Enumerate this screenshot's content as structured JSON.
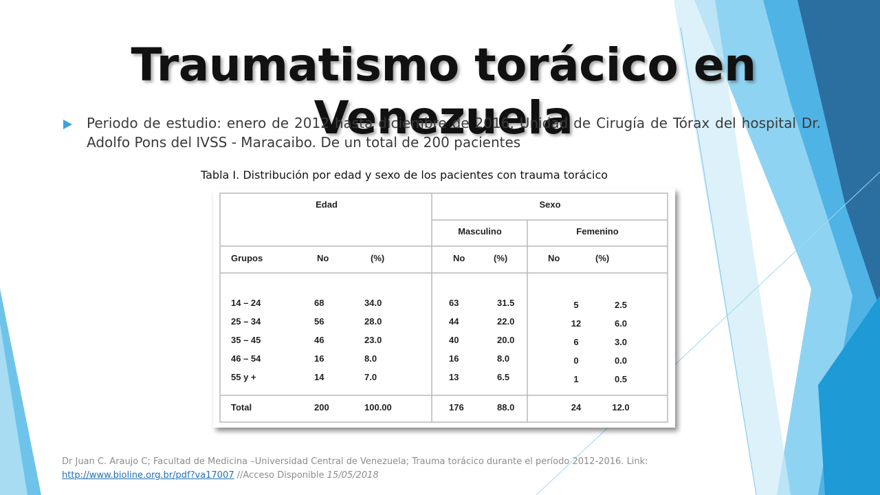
{
  "slide": {
    "title": "Traumatismo torácico en Venezuela",
    "bullet": "Periodo de estudio: enero de 2012 hasta diciembre de 2016, Unidad de Cirugía de Tórax del hospital Dr. Adolfo Pons del IVSS - Maracaibo. De un total de 200 pacientes",
    "table_caption": "Tabla I. Distribución por edad y sexo de los pacientes con trauma torácico"
  },
  "table": {
    "header_edad": "Edad",
    "header_sexo": "Sexo",
    "header_masculino": "Masculino",
    "header_femenino": "Femenino",
    "col_grupos": "Grupos",
    "col_no": "No",
    "col_pct": "(%)",
    "rows": [
      {
        "grupo": "14 – 24",
        "no": "68",
        "pct": "34.0",
        "m_no": "63",
        "m_pct": "31.5",
        "f_no": "5",
        "f_pct": "2.5"
      },
      {
        "grupo": "25 – 34",
        "no": "56",
        "pct": "28.0",
        "m_no": "44",
        "m_pct": "22.0",
        "f_no": "12",
        "f_pct": "6.0"
      },
      {
        "grupo": "35 – 45",
        "no": "46",
        "pct": "23.0",
        "m_no": "40",
        "m_pct": "20.0",
        "f_no": "6",
        "f_pct": "3.0"
      },
      {
        "grupo": "46 – 54",
        "no": "16",
        "pct": "8.0",
        "m_no": "16",
        "m_pct": "8.0",
        "f_no": "0",
        "f_pct": "0.0"
      },
      {
        "grupo": "55  y +",
        "no": "14",
        "pct": "7.0",
        "m_no": "13",
        "m_pct": "6.5",
        "f_no": "1",
        "f_pct": "0.5"
      }
    ],
    "total": {
      "grupo": "Total",
      "no": "200",
      "pct": "100.00",
      "m_no": "176",
      "m_pct": "88.0",
      "f_no": "24",
      "f_pct": "12.0"
    }
  },
  "footer": {
    "citation": "Dr Juan C. Araujo C; Facultad de Medicina –Universidad Central de Venezuela; Trauma torácico durante el período 2012-2016. Link:",
    "link": "http://www.bioline.org.br/pdf?va17007",
    "access_text": " //Acceso Disponible ",
    "access_date": "15/05/2018"
  },
  "colors": {
    "accent": "#3ea3d8",
    "dark_blue": "#2b6ea0",
    "light_blue": "#8fd3f2",
    "link": "#1f6fb6"
  }
}
